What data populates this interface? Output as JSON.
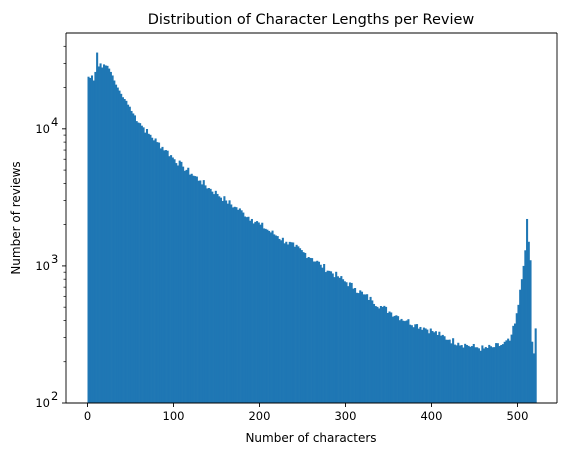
{
  "chart_data": {
    "type": "bar",
    "subtype": "histogram",
    "title": "Distribution of Character Lengths per Review",
    "xlabel": "Number of characters",
    "ylabel": "Number of reviews",
    "yscale": "log",
    "xlim": [
      -25,
      546
    ],
    "ylim": [
      100,
      50000
    ],
    "bin_range": [
      0,
      522
    ],
    "bin_width": 2,
    "grid": false,
    "color": "#1f77b4",
    "x_ticks": [
      0,
      100,
      200,
      300,
      400,
      500
    ],
    "x_tick_labels": [
      "0",
      "100",
      "200",
      "300",
      "400",
      "500"
    ],
    "y_ticks": [
      100,
      1000,
      10000
    ],
    "y_tick_labels": [
      "10",
      "10",
      "10"
    ],
    "y_tick_exponents": [
      "2",
      "3",
      "4"
    ],
    "bins": [
      [
        0,
        24000
      ],
      [
        2,
        23500
      ],
      [
        4,
        24500
      ],
      [
        6,
        22500
      ],
      [
        8,
        26000
      ],
      [
        10,
        36000
      ],
      [
        12,
        28500
      ],
      [
        14,
        30000
      ],
      [
        16,
        28000
      ],
      [
        18,
        29500
      ],
      [
        20,
        29000
      ],
      [
        22,
        28800
      ],
      [
        24,
        27500
      ],
      [
        26,
        26000
      ],
      [
        28,
        24500
      ],
      [
        30,
        22500
      ],
      [
        32,
        21000
      ],
      [
        34,
        20000
      ],
      [
        36,
        19000
      ],
      [
        38,
        18000
      ],
      [
        40,
        17000
      ],
      [
        42,
        16500
      ],
      [
        44,
        16000
      ],
      [
        46,
        15000
      ],
      [
        48,
        14500
      ],
      [
        50,
        13500
      ],
      [
        60,
        11000
      ],
      [
        70,
        9200
      ],
      [
        80,
        8000
      ],
      [
        90,
        7000
      ],
      [
        100,
        6000
      ],
      [
        110,
        5300
      ],
      [
        120,
        4700
      ],
      [
        130,
        4200
      ],
      [
        140,
        3700
      ],
      [
        150,
        3350
      ],
      [
        160,
        3000
      ],
      [
        170,
        2700
      ],
      [
        180,
        2450
      ],
      [
        190,
        2200
      ],
      [
        200,
        2000
      ],
      [
        210,
        1800
      ],
      [
        220,
        1650
      ],
      [
        230,
        1500
      ],
      [
        240,
        1380
      ],
      [
        250,
        1260
      ],
      [
        260,
        1140
      ],
      [
        270,
        1020
      ],
      [
        280,
        920
      ],
      [
        290,
        840
      ],
      [
        300,
        760
      ],
      [
        310,
        690
      ],
      [
        320,
        620
      ],
      [
        330,
        560
      ],
      [
        340,
        510
      ],
      [
        350,
        465
      ],
      [
        360,
        430
      ],
      [
        370,
        400
      ],
      [
        380,
        375
      ],
      [
        390,
        355
      ],
      [
        400,
        335
      ],
      [
        410,
        310
      ],
      [
        420,
        290
      ],
      [
        430,
        275
      ],
      [
        440,
        265
      ],
      [
        450,
        255
      ],
      [
        460,
        250
      ],
      [
        470,
        255
      ],
      [
        480,
        265
      ],
      [
        490,
        285
      ],
      [
        496,
        380
      ],
      [
        500,
        520
      ],
      [
        504,
        800
      ],
      [
        506,
        1000
      ],
      [
        508,
        1300
      ],
      [
        510,
        2200
      ],
      [
        512,
        1500
      ],
      [
        514,
        1100
      ],
      [
        516,
        280
      ],
      [
        518,
        230
      ],
      [
        520,
        350
      ]
    ]
  }
}
